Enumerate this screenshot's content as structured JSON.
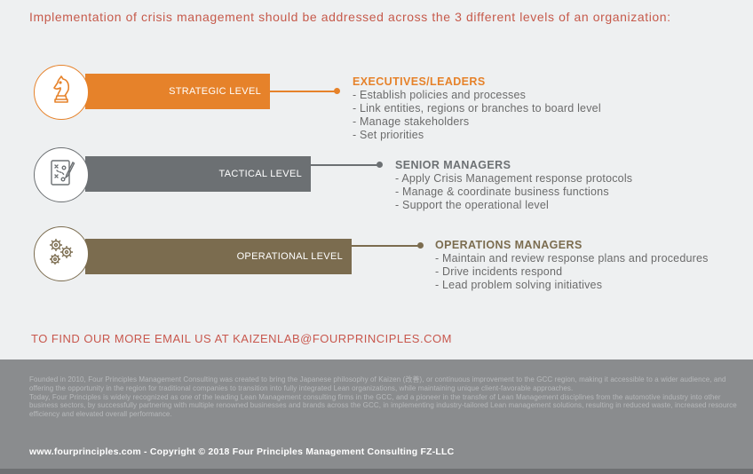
{
  "intro_text": "Implementation of crisis management should be addressed across the 3 different levels of an organization:",
  "levels": [
    {
      "label": "STRATEGIC LEVEL",
      "color": "#e6822a",
      "icon": "chess-knight-icon",
      "heading": "EXECUTIVES/LEADERS",
      "items": [
        "- Establish policies and processes",
        "- Link entities, regions or branches to board level",
        "- Manage stakeholders",
        "- Set priorities"
      ]
    },
    {
      "label": "TACTICAL LEVEL",
      "color": "#6c7073",
      "icon": "strategy-board-icon",
      "heading": "SENIOR MANAGERS",
      "items": [
        "- Apply Crisis Management response protocols",
        "- Manage & coordinate business functions",
        "- Support the operational level"
      ]
    },
    {
      "label": "OPERATIONAL LEVEL",
      "color": "#7b6c4f",
      "icon": "gears-icon",
      "heading": "OPERATIONS MANAGERS",
      "items": [
        "- Maintain and review response plans and procedures",
        "- Drive incidents respond",
        "- Lead problem solving initiatives"
      ]
    }
  ],
  "cta": "TO FIND OUR MORE EMAIL US AT KAIZENLAB@FOURPRINCIPLES.COM",
  "footer": {
    "about": [
      "Founded in 2010, Four Principles Management Consulting was created to bring the Japanese philosophy of Kaizen (改善), or continuous improvement to the GCC region, making it accessible to a wider audience, and offering the opportunity in the region for traditional companies to transition into fully integrated Lean organizations, while maintaining unique client-favorable approaches.",
      "Today, Four Principles is widely recognized as one of the leading Lean Management consulting firms in the GCC, and a pioneer in the transfer of Lean Management disciplines from the automotive industry into other business sectors, by successfully partnering with multiple renowned businesses and brands across the GCC, in implementing industry-tailored Lean management solutions, resulting in reduced waste, increased resource efficiency and elevated overall performance."
    ],
    "copyright": "www.fourprinciples.com - Copyright © 2018 Four Principles Management Consulting FZ-LLC"
  }
}
